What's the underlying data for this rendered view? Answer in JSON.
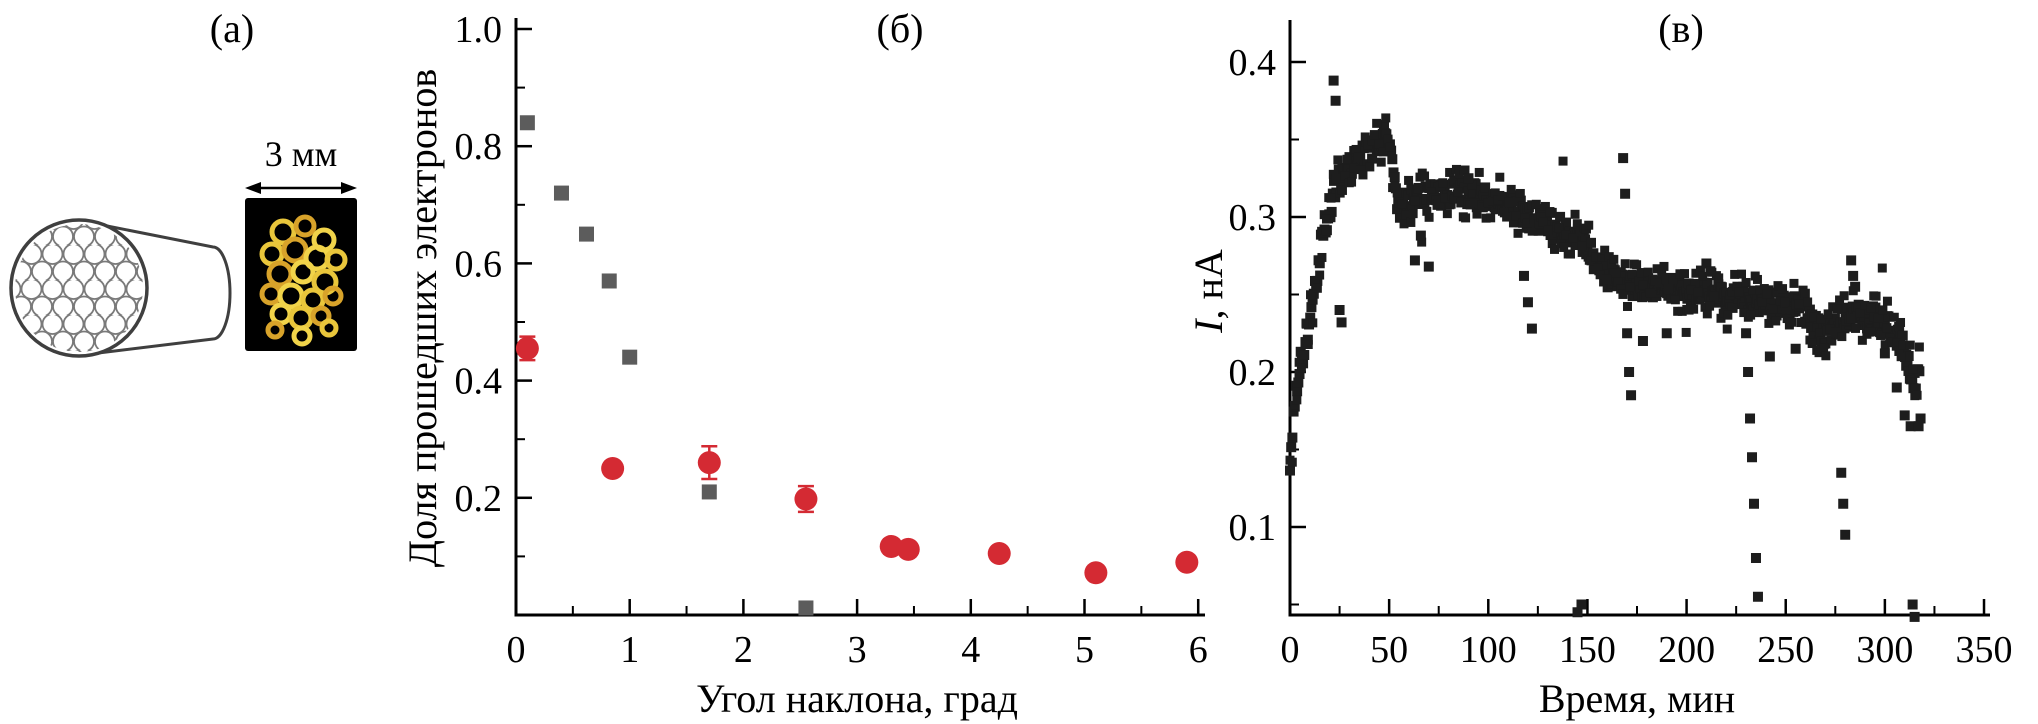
{
  "panels": {
    "a": {
      "label": "(а)",
      "scale_label": "3 мм",
      "photo_background": "#000000",
      "photo_ring_colors": [
        "#e9c63b",
        "#d8a32a",
        "#f1d44a"
      ],
      "schematic_stroke": "#3f3f3f"
    }
  },
  "chart_data": [
    {
      "id": "panel-b",
      "type": "scatter",
      "title": "(б)",
      "xlabel": "Угол наклона, град",
      "ylabel": "Доля прошедших электронов",
      "xlim": [
        0,
        6.1
      ],
      "ylim": [
        0,
        1.02
      ],
      "grid": false,
      "legend": "none",
      "xticks": {
        "values": [
          0,
          1,
          2,
          3,
          4,
          5,
          6
        ],
        "labels": [
          "0",
          "1",
          "2",
          "3",
          "4",
          "5",
          "6"
        ]
      },
      "yticks": {
        "values": [
          0.2,
          0.4,
          0.6,
          0.8,
          1.0
        ],
        "labels": [
          "0.2",
          "0.4",
          "0.6",
          "0.8",
          "1.0"
        ]
      },
      "series": [
        {
          "name": "gray squares",
          "marker": "square",
          "color": "#5c5c5c",
          "points": [
            [
              0.1,
              0.84
            ],
            [
              0.4,
              0.72
            ],
            [
              0.62,
              0.65
            ],
            [
              0.82,
              0.57
            ],
            [
              1.0,
              0.44
            ],
            [
              1.7,
              0.21
            ],
            [
              2.55,
              0.012
            ]
          ]
        },
        {
          "name": "red circles",
          "marker": "circle",
          "color": "#d42a33",
          "points": [
            [
              0.1,
              0.455
            ],
            [
              0.85,
              0.25
            ],
            [
              1.7,
              0.26
            ],
            [
              2.55,
              0.198
            ],
            [
              3.3,
              0.117
            ],
            [
              3.45,
              0.112
            ],
            [
              4.25,
              0.105
            ],
            [
              5.1,
              0.072
            ],
            [
              5.9,
              0.09
            ]
          ],
          "yerr": [
            0.02,
            0.012,
            0.028,
            0.022,
            0.012,
            0.012,
            0.01,
            0.008,
            0.008
          ]
        }
      ]
    },
    {
      "id": "panel-c",
      "type": "scatter",
      "title": "(в)",
      "xlabel": "Время, мин",
      "ylabel_italic": "I",
      "ylabel_rest": ", нА",
      "xlim": [
        0,
        353
      ],
      "ylim": [
        0.04,
        0.43
      ],
      "grid": false,
      "legend": "none",
      "xticks": {
        "values": [
          0,
          50,
          100,
          150,
          200,
          250,
          300,
          350
        ],
        "labels": [
          "0",
          "50",
          "100",
          "150",
          "200",
          "250",
          "300",
          "350"
        ]
      },
      "yticks": {
        "values": [
          0.1,
          0.2,
          0.3,
          0.4
        ],
        "labels": [
          "0.1",
          "0.2",
          "0.3",
          "0.4"
        ]
      },
      "series": [
        {
          "name": "transmitted current",
          "marker": "square",
          "color": "#1d1d1d",
          "noise": 0.008,
          "seed": 20240229,
          "base_curve": [
            [
              0,
              0.135
            ],
            [
              1,
              0.155
            ],
            [
              3,
              0.19
            ],
            [
              5,
              0.205
            ],
            [
              7,
              0.215
            ],
            [
              10,
              0.235
            ],
            [
              13,
              0.26
            ],
            [
              16,
              0.285
            ],
            [
              19,
              0.3
            ],
            [
              22,
              0.315
            ],
            [
              25,
              0.325
            ],
            [
              28,
              0.33
            ],
            [
              32,
              0.335
            ],
            [
              36,
              0.34
            ],
            [
              40,
              0.342
            ],
            [
              44,
              0.348
            ],
            [
              48,
              0.352
            ],
            [
              51,
              0.345
            ],
            [
              53,
              0.315
            ],
            [
              56,
              0.308
            ],
            [
              60,
              0.31
            ],
            [
              65,
              0.312
            ],
            [
              70,
              0.313
            ],
            [
              75,
              0.315
            ],
            [
              80,
              0.315
            ],
            [
              85,
              0.316
            ],
            [
              90,
              0.315
            ],
            [
              95,
              0.313
            ],
            [
              100,
              0.312
            ],
            [
              105,
              0.31
            ],
            [
              110,
              0.308
            ],
            [
              115,
              0.305
            ],
            [
              120,
              0.3
            ],
            [
              125,
              0.298
            ],
            [
              130,
              0.296
            ],
            [
              135,
              0.293
            ],
            [
              140,
              0.29
            ],
            [
              145,
              0.288
            ],
            [
              150,
              0.282
            ],
            [
              153,
              0.272
            ],
            [
              156,
              0.266
            ],
            [
              160,
              0.262
            ],
            [
              165,
              0.26
            ],
            [
              170,
              0.258
            ],
            [
              175,
              0.256
            ],
            [
              180,
              0.255
            ],
            [
              185,
              0.255
            ],
            [
              190,
              0.254
            ],
            [
              195,
              0.252
            ],
            [
              200,
              0.25
            ],
            [
              205,
              0.25
            ],
            [
              210,
              0.25
            ],
            [
              215,
              0.249
            ],
            [
              220,
              0.249
            ],
            [
              225,
              0.248
            ],
            [
              230,
              0.248
            ],
            [
              235,
              0.246
            ],
            [
              240,
              0.245
            ],
            [
              245,
              0.244
            ],
            [
              250,
              0.243
            ],
            [
              255,
              0.242
            ],
            [
              260,
              0.24
            ],
            [
              263,
              0.232
            ],
            [
              266,
              0.227
            ],
            [
              270,
              0.224
            ],
            [
              274,
              0.228
            ],
            [
              278,
              0.233
            ],
            [
              282,
              0.236
            ],
            [
              286,
              0.237
            ],
            [
              290,
              0.236
            ],
            [
              295,
              0.234
            ],
            [
              300,
              0.232
            ],
            [
              304,
              0.228
            ],
            [
              308,
              0.22
            ],
            [
              312,
              0.205
            ],
            [
              315,
              0.195
            ],
            [
              318,
              0.205
            ]
          ],
          "outliers": [
            [
              22,
              0.388
            ],
            [
              23,
              0.375
            ],
            [
              25,
              0.24
            ],
            [
              26,
              0.232
            ],
            [
              63,
              0.272
            ],
            [
              66,
              0.288
            ],
            [
              70,
              0.268
            ],
            [
              88,
              0.33
            ],
            [
              90,
              0.325
            ],
            [
              118,
              0.262
            ],
            [
              120,
              0.245
            ],
            [
              122,
              0.228
            ],
            [
              145,
              0.045
            ],
            [
              147,
              0.05
            ],
            [
              168,
              0.338
            ],
            [
              169,
              0.315
            ],
            [
              170,
              0.225
            ],
            [
              171,
              0.2
            ],
            [
              172,
              0.185
            ],
            [
              178,
              0.22
            ],
            [
              190,
              0.225
            ],
            [
              210,
              0.27
            ],
            [
              212,
              0.265
            ],
            [
              230,
              0.225
            ],
            [
              231,
              0.2
            ],
            [
              232,
              0.17
            ],
            [
              233,
              0.145
            ],
            [
              234,
              0.115
            ],
            [
              235,
              0.08
            ],
            [
              236,
              0.055
            ],
            [
              242,
              0.21
            ],
            [
              255,
              0.215
            ],
            [
              278,
              0.135
            ],
            [
              279,
              0.115
            ],
            [
              280,
              0.095
            ],
            [
              283,
              0.272
            ],
            [
              284,
              0.262
            ],
            [
              285,
              0.255
            ],
            [
              300,
              0.212
            ],
            [
              306,
              0.19
            ],
            [
              310,
              0.172
            ],
            [
              313,
              0.165
            ],
            [
              314,
              0.05
            ],
            [
              315,
              0.042
            ],
            [
              317,
              0.165
            ],
            [
              318,
              0.17
            ]
          ]
        }
      ]
    }
  ]
}
